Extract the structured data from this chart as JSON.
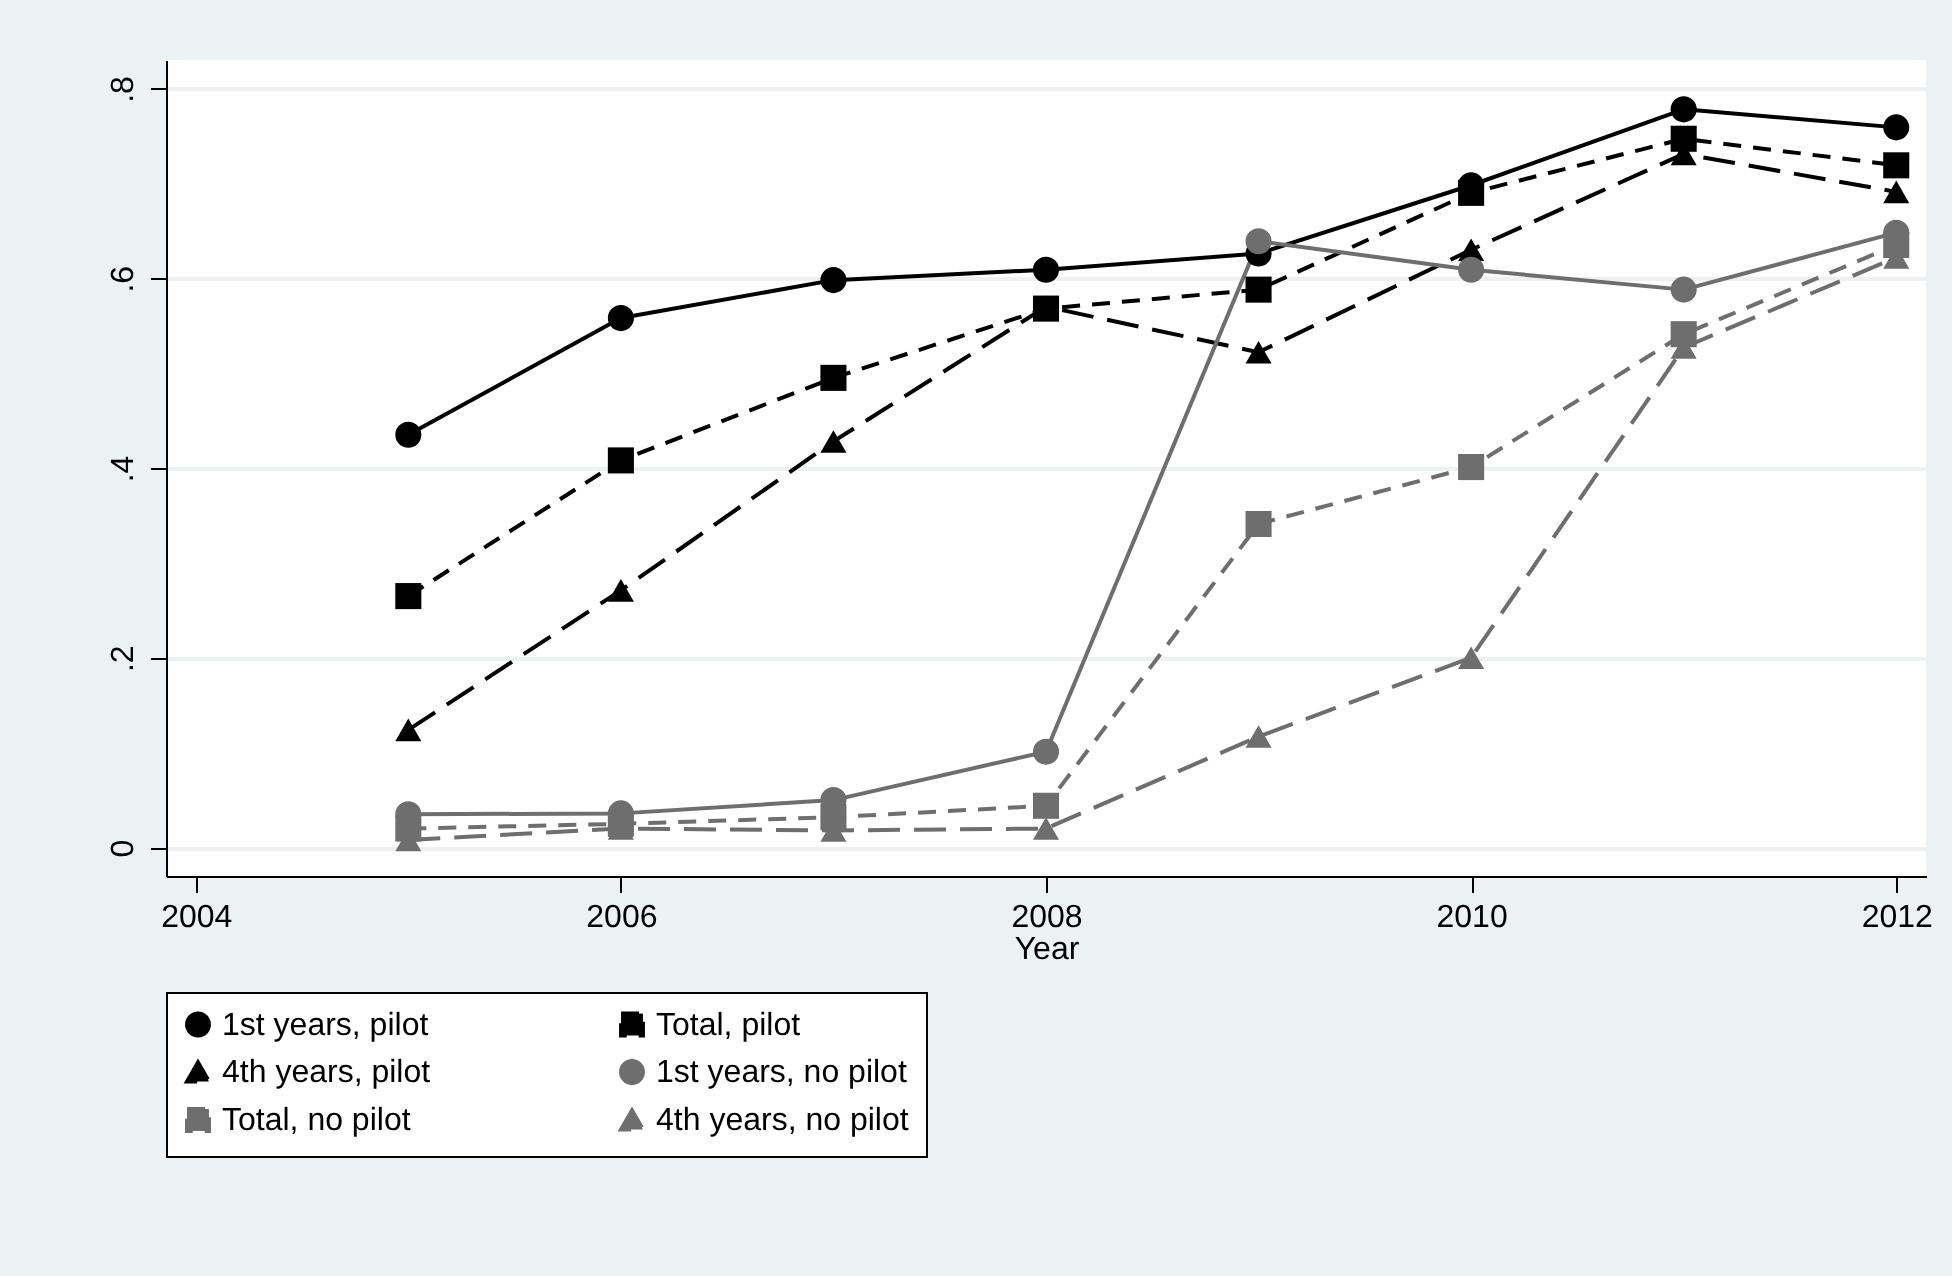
{
  "chart_data": {
    "type": "line",
    "xlabel": "Year",
    "x": [
      2005,
      2006,
      2007,
      2008,
      2009,
      2010,
      2011,
      2012
    ],
    "xlim": [
      2003.86,
      2012.14
    ],
    "xticks": [
      2004,
      2006,
      2008,
      2010,
      2012
    ],
    "ylim": [
      -0.03,
      0.83
    ],
    "yticks": [
      0,
      {
        "value": 0.2,
        "label": ".2"
      },
      {
        "value": 0.4,
        "label": ".4"
      },
      {
        "value": 0.6,
        "label": ".6"
      },
      {
        "value": 0.8,
        "label": ".8"
      }
    ],
    "grid": "y",
    "legend": "bottom",
    "series": [
      {
        "name": "1st years, pilot",
        "color": "#000000",
        "marker": "circle",
        "line_style": "solid",
        "values": [
          0.435,
          0.558,
          0.598,
          0.609,
          0.626,
          0.698,
          0.778,
          0.759
        ]
      },
      {
        "name": "Total, pilot",
        "color": "#000000",
        "marker": "square",
        "line_style": "dashed",
        "values": [
          0.265,
          0.408,
          0.495,
          0.568,
          0.588,
          0.69,
          0.747,
          0.719
        ]
      },
      {
        "name": "4th years, pilot",
        "color": "#000000",
        "marker": "triangle",
        "line_style": "dashed",
        "values": [
          0.124,
          0.271,
          0.428,
          0.57,
          0.522,
          0.63,
          0.731,
          0.691
        ]
      },
      {
        "name": "1st years, no pilot",
        "color": "#6e6e6e",
        "marker": "circle",
        "line_style": "solid",
        "values": [
          0.035,
          0.036,
          0.05,
          0.101,
          0.639,
          0.609,
          0.588,
          0.648
        ]
      },
      {
        "name": "Total, no pilot",
        "color": "#6e6e6e",
        "marker": "square",
        "line_style": "dashed",
        "values": [
          0.02,
          0.025,
          0.032,
          0.044,
          0.341,
          0.401,
          0.541,
          0.635
        ]
      },
      {
        "name": "4th years, no pilot",
        "color": "#6e6e6e",
        "marker": "triangle",
        "line_style": "dashed",
        "values": [
          0.008,
          0.02,
          0.018,
          0.02,
          0.117,
          0.2,
          0.527,
          0.622
        ]
      }
    ]
  }
}
